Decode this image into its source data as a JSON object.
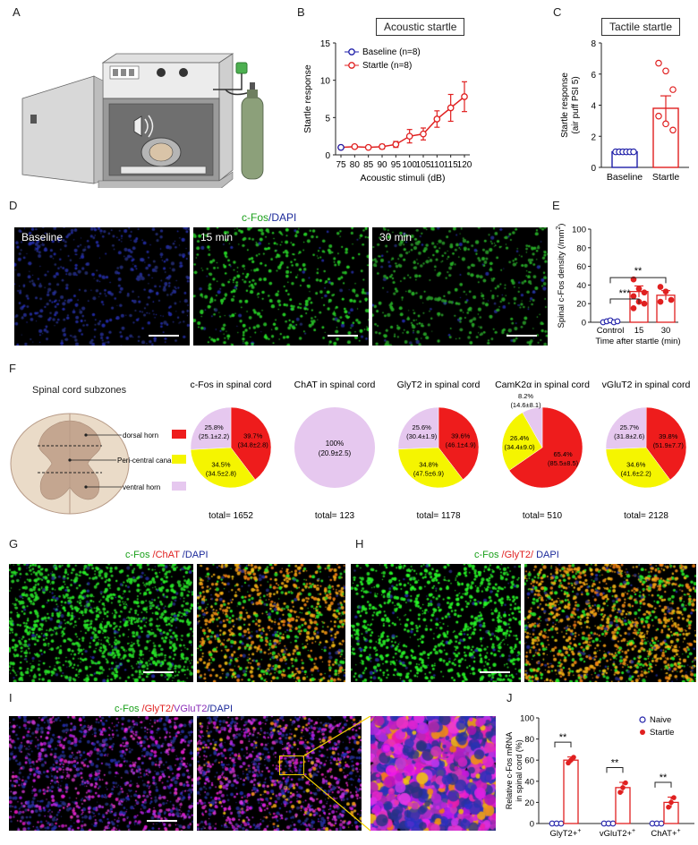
{
  "panels": {
    "A": "A",
    "B": "B",
    "C": "C",
    "D": "D",
    "E": "E",
    "F": "F",
    "G": "G",
    "H": "H",
    "I": "I",
    "J": "J"
  },
  "B": {
    "box_title": "Acoustic startle",
    "ylabel": "Startle response",
    "xlabel": "Acoustic stimuli (dB)",
    "legend": [
      "Baseline (n=8)",
      "Startle (n=8)"
    ],
    "colors": {
      "baseline": "#1e1ea8",
      "startle": "#e02020"
    }
  },
  "C": {
    "box_title": "Tactile startle",
    "ylabel1": "Startle response",
    "ylabel2": "(air puff PSI 5)",
    "categories": [
      "Baseline",
      "Startle"
    ]
  },
  "D": {
    "title_cfos": "c-Fos",
    "title_dapi": "/DAPI",
    "labels": [
      "Baseline",
      "15 min",
      "30 min"
    ]
  },
  "E": {
    "ylabel": "Spinal c-Fos density (/mm",
    "xlabel": "Time after startle (min)",
    "categories": [
      "Control",
      "15",
      "30"
    ],
    "sig": [
      "***",
      "**"
    ]
  },
  "F": {
    "diagram_title": "Spinal cord subzones",
    "legend": [
      "dorsal horn",
      "Peri-central canal",
      "ventral horn"
    ],
    "pies": [
      {
        "title": "c-Fos in spinal cord",
        "total": "total= 1652",
        "slices": [
          {
            "zone": "dorsal",
            "line1": "39.7%",
            "line2": "(34.8±2.8)"
          },
          {
            "zone": "central",
            "line1": "34.5%",
            "line2": "(34.5±2.8)"
          },
          {
            "zone": "ventral",
            "line1": "25.8%",
            "line2": "(25.1±2.2)"
          }
        ]
      },
      {
        "title": "ChAT in spinal cord",
        "total": "total= 123",
        "slices": [
          {
            "zone": "ventral",
            "line1": "100%",
            "line2": "(20.9±2.5)"
          }
        ]
      },
      {
        "title": "GlyT2 in spinal cord",
        "total": "total= 1178",
        "slices": [
          {
            "zone": "dorsal",
            "line1": "39.6%",
            "line2": "(46.1±4.9)"
          },
          {
            "zone": "central",
            "line1": "34.8%",
            "line2": "(47.5±6.9)"
          },
          {
            "zone": "ventral",
            "line1": "25.6%",
            "line2": "(30.4±1.9)"
          }
        ]
      },
      {
        "title": "CamK2α in spinal cord",
        "total": "total= 510",
        "slices": [
          {
            "zone": "dorsal",
            "line1": "65.4%",
            "line2": "(85.5±8.5)"
          },
          {
            "zone": "central",
            "line1": "26.4%",
            "line2": "(34.4±9.0)"
          },
          {
            "zone": "ventral",
            "line1": "8.2%",
            "line2": "(14.6±8.1)"
          }
        ]
      },
      {
        "title": "vGluT2 in spinal cord",
        "total": "total= 2128",
        "slices": [
          {
            "zone": "dorsal",
            "line1": "39.8%",
            "line2": "(51.9±7.7)"
          },
          {
            "zone": "central",
            "line1": "34.6%",
            "line2": "(41.6±2.2)"
          },
          {
            "zone": "ventral",
            "line1": "25.7%",
            "line2": "(31.8±2.6)"
          }
        ]
      }
    ],
    "colors": {
      "dorsal": "#ee1c1c",
      "central": "#f5f500",
      "ventral": "#e6c8ef"
    }
  },
  "G": {
    "t_cfos": "c-Fos",
    "t_chat": " /ChAT",
    "t_dapi": " /DAPI"
  },
  "H": {
    "t_cfos": "c-Fos",
    "t_glyt2": " /GlyT2/",
    "t_dapi": " DAPI"
  },
  "I": {
    "t_cfos": "c-Fos",
    "t_glyt2": " /GlyT2/",
    "t_vglut2": "VGluT2",
    "t_dapi": "/DAPI"
  },
  "J": {
    "ylabel1": "Relative c-Fos mRNA",
    "ylabel2": "in spinal cord (%)",
    "legend": [
      "Naive",
      "Startle"
    ],
    "categories": [
      "GlyT2",
      "vGluT2",
      "ChAT"
    ],
    "sig": "**"
  },
  "chart_data": [
    {
      "type": "line",
      "title": "Acoustic startle",
      "xlabel": "Acoustic stimuli (dB)",
      "ylabel": "Startle response",
      "x": [
        75,
        80,
        85,
        90,
        95,
        100,
        105,
        110,
        115,
        120
      ],
      "ylim": [
        0,
        15
      ],
      "series": [
        {
          "name": "Baseline (n=8)",
          "values": [
            1.0,
            null,
            null,
            null,
            null,
            null,
            null,
            null,
            null,
            null
          ]
        },
        {
          "name": "Startle (n=8)",
          "values": [
            1.0,
            1.1,
            1.0,
            1.1,
            1.4,
            2.5,
            2.8,
            4.8,
            6.3,
            7.8
          ],
          "err": [
            0.1,
            0.2,
            0.2,
            0.3,
            0.4,
            0.9,
            0.8,
            1.1,
            1.8,
            2.0
          ]
        }
      ]
    },
    {
      "type": "bar",
      "title": "Tactile startle",
      "ylabel": "Startle response (air puff PSI 5)",
      "categories": [
        "Baseline",
        "Startle"
      ],
      "values": [
        1.0,
        3.8
      ],
      "err": [
        0.05,
        0.8
      ],
      "points": [
        [
          1,
          1,
          1,
          1,
          1,
          1
        ],
        [
          6.7,
          6.2,
          5.0,
          3.3,
          2.8,
          2.4
        ]
      ],
      "ylim": [
        0,
        8
      ]
    },
    {
      "type": "bar",
      "ylabel": "Spinal c-Fos density (/mm2)",
      "xlabel": "Time after startle (min)",
      "categories": [
        "Control",
        "15",
        "30"
      ],
      "values": [
        1,
        33,
        29
      ],
      "err": [
        1,
        6,
        5
      ],
      "points": [
        [
          0,
          1,
          2,
          0,
          1
        ],
        [
          46,
          36,
          32,
          28,
          22,
          20,
          15
        ],
        [
          38,
          33,
          24,
          22
        ]
      ],
      "ylim": [
        0,
        100
      ]
    },
    {
      "type": "bar",
      "ylabel": "Relative c-Fos mRNA in spinal cord (%)",
      "categories": [
        "GlyT2+",
        "vGluT2+",
        "ChAT+"
      ],
      "series": [
        {
          "name": "Naive",
          "values": [
            0,
            0,
            0
          ]
        },
        {
          "name": "Startle",
          "values": [
            60,
            34,
            20
          ],
          "err": [
            3,
            5,
            5
          ]
        }
      ],
      "ylim": [
        0,
        100
      ]
    }
  ]
}
